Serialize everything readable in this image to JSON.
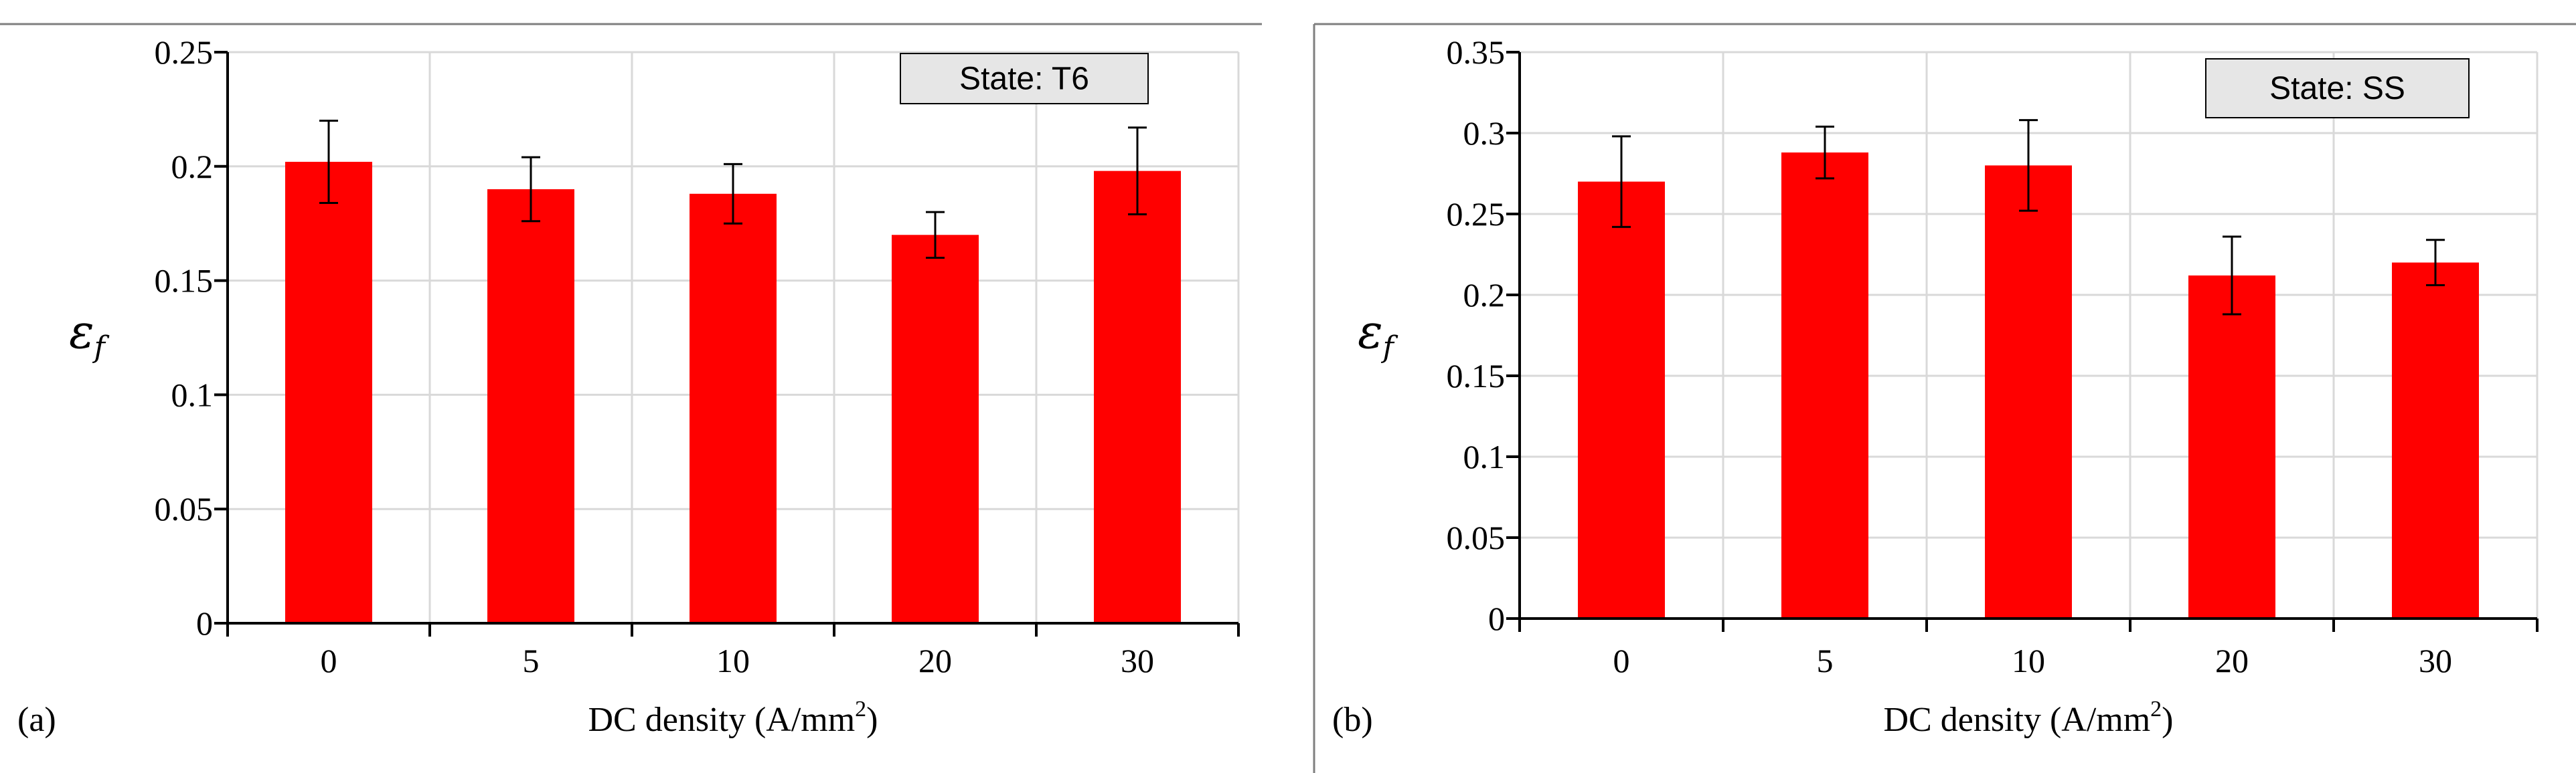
{
  "colors": {
    "bar": "#ff0000",
    "grid": "#d9d9d9",
    "axis": "#000000",
    "legend_bg": "#e6e6e6",
    "frame": "#7f7f7f"
  },
  "chart_data": [
    {
      "type": "bar",
      "panel_label": "(a)",
      "legend_text": "State:  T6",
      "legend_position": "top-right",
      "ylabel_main": "ε",
      "ylabel_sub": "f",
      "xlabel_main": "DC density  (A/mm",
      "xlabel_sup": "2",
      "xlabel_tail": ")",
      "categories": [
        "0",
        "5",
        "10",
        "20",
        "30"
      ],
      "values": [
        0.202,
        0.19,
        0.188,
        0.17,
        0.198
      ],
      "errors": [
        0.018,
        0.014,
        0.013,
        0.01,
        0.019
      ],
      "ylim": [
        0,
        0.25
      ],
      "yticks": [
        0,
        0.05,
        0.1,
        0.15,
        0.2,
        0.25
      ],
      "ytick_labels": [
        "0",
        "0.05",
        "0.1",
        "0.15",
        "0.2",
        "0.25"
      ],
      "grid": true
    },
    {
      "type": "bar",
      "panel_label": "(b)",
      "legend_text": "State:  SS",
      "legend_position": "top-right",
      "ylabel_main": "ε",
      "ylabel_sub": "f",
      "xlabel_main": "DC density  (A/mm",
      "xlabel_sup": "2",
      "xlabel_tail": ")",
      "categories": [
        "0",
        "5",
        "10",
        "20",
        "30"
      ],
      "values": [
        0.27,
        0.288,
        0.28,
        0.212,
        0.22
      ],
      "errors": [
        0.028,
        0.016,
        0.028,
        0.024,
        0.014
      ],
      "ylim": [
        0,
        0.35
      ],
      "yticks": [
        0,
        0.05,
        0.1,
        0.15,
        0.2,
        0.25,
        0.3,
        0.35
      ],
      "ytick_labels": [
        "0",
        "0.05",
        "0.1",
        "0.15",
        "0.2",
        "0.25",
        "0.3",
        "0.35"
      ],
      "grid": true
    }
  ]
}
